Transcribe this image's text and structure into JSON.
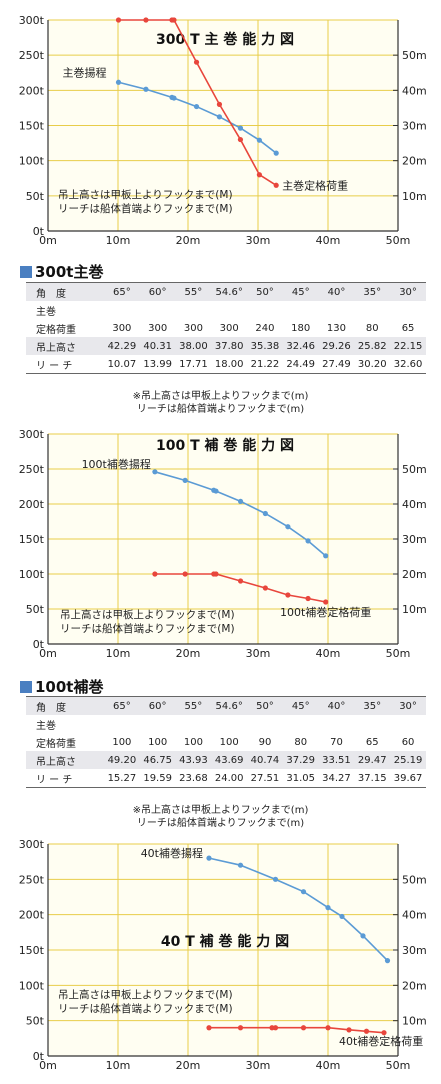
{
  "charts": [
    {
      "chart_data": {
        "type": "line",
        "title": "300 T 主 巻 能 力 図",
        "x_tick_labels": [
          "0m",
          "10m",
          "20m",
          "30m",
          "40m",
          "50m"
        ],
        "xlim": [
          0,
          50
        ],
        "y_left_tick_labels": [
          "0t",
          "50t",
          "100t",
          "150t",
          "200t",
          "250t",
          "300t"
        ],
        "ylim_left": [
          0,
          300
        ],
        "y_right_tick_labels": [
          "10m",
          "20m",
          "30m",
          "40m",
          "50m"
        ],
        "ylim_right": [
          0,
          60
        ],
        "grid": true,
        "series": [
          {
            "name": "主巻揚程",
            "axis": "right",
            "color": "#5b9bd5",
            "x": [
              10.07,
              13.99,
              17.71,
              18.0,
              21.22,
              24.49,
              27.49,
              30.2,
              32.6
            ],
            "y": [
              42.29,
              40.31,
              38.0,
              37.8,
              35.38,
              32.46,
              29.26,
              25.82,
              22.15
            ]
          },
          {
            "name": "主巻定格荷重",
            "axis": "left",
            "color": "#e8463c",
            "x": [
              10.07,
              13.99,
              17.71,
              18.0,
              21.22,
              24.49,
              27.49,
              30.2,
              32.6
            ],
            "y": [
              300,
              300,
              300,
              300,
              240,
              180,
              130,
              80,
              65
            ]
          }
        ],
        "notes": [
          "吊上高さは甲板上よりフックまで(M)",
          "リーチは船体首端よりフックまで(M)"
        ]
      }
    },
    {
      "chart_data": {
        "type": "line",
        "title": "100 T 補 巻 能 力 図",
        "x_tick_labels": [
          "0m",
          "10m",
          "20m",
          "30m",
          "40m",
          "50m"
        ],
        "xlim": [
          0,
          50
        ],
        "y_left_tick_labels": [
          "0t",
          "50t",
          "100t",
          "150t",
          "200t",
          "250t",
          "300t"
        ],
        "ylim_left": [
          0,
          300
        ],
        "y_right_tick_labels": [
          "10m",
          "20m",
          "30m",
          "40m",
          "50m"
        ],
        "ylim_right": [
          0,
          60
        ],
        "grid": true,
        "series": [
          {
            "name": "100t補巻揚程",
            "axis": "right",
            "color": "#5b9bd5",
            "x": [
              15.27,
              19.59,
              23.68,
              24.0,
              27.51,
              31.05,
              34.27,
              37.15,
              39.67
            ],
            "y": [
              49.2,
              46.75,
              43.93,
              43.69,
              40.74,
              37.29,
              33.51,
              29.47,
              25.19
            ]
          },
          {
            "name": "100t補巻定格荷重",
            "axis": "left",
            "color": "#e8463c",
            "x": [
              15.27,
              19.59,
              23.68,
              24.0,
              27.51,
              31.05,
              34.27,
              37.15,
              39.67
            ],
            "y": [
              100,
              100,
              100,
              100,
              90,
              80,
              70,
              65,
              60
            ]
          }
        ],
        "notes": [
          "吊上高さは甲板上よりフックまで(M)",
          "リーチは船体首端よりフックまで(M)"
        ]
      }
    },
    {
      "chart_data": {
        "type": "line",
        "title": "40 T 補 巻 能 力 図",
        "x_tick_labels": [
          "0m",
          "10m",
          "20m",
          "30m",
          "40m",
          "50m"
        ],
        "xlim": [
          0,
          50
        ],
        "y_left_tick_labels": [
          "0t",
          "50t",
          "100t",
          "150t",
          "200t",
          "250t",
          "300t"
        ],
        "ylim_left": [
          0,
          300
        ],
        "y_right_tick_labels": [
          "10m",
          "20m",
          "30m",
          "40m",
          "50m"
        ],
        "ylim_right": [
          0,
          60
        ],
        "grid": true,
        "series": [
          {
            "name": "40t補巻揚程",
            "axis": "right",
            "color": "#5b9bd5",
            "x": [
              23.0,
              27.5,
              32.5,
              36.5,
              40.0,
              42.0,
              45.0,
              48.5
            ],
            "y": [
              56.0,
              54.0,
              50.0,
              46.5,
              42.0,
              39.5,
              34.0,
              27.0
            ]
          },
          {
            "name": "40t補巻定格荷重",
            "axis": "left",
            "color": "#e8463c",
            "x": [
              23.0,
              27.5,
              32.0,
              32.5,
              36.5,
              40.0,
              43.0,
              45.5,
              48.0
            ],
            "y": [
              40,
              40,
              40,
              40,
              40,
              40,
              37,
              35,
              33
            ]
          }
        ],
        "notes": [
          "吊上高さは甲板上よりフックまで(M)",
          "リーチは船体首端よりフックまで(M)"
        ]
      }
    }
  ],
  "tables": [
    {
      "title": "300t主巻",
      "header_label": "角　度",
      "angles": [
        "65°",
        "60°",
        "55°",
        "54.6°",
        "50°",
        "45°",
        "40°",
        "35°",
        "30°"
      ],
      "group_label": "主巻",
      "rows": [
        {
          "label": "定格荷重",
          "values": [
            "300",
            "300",
            "300",
            "300",
            "240",
            "180",
            "130",
            "80",
            "65"
          ]
        },
        {
          "label": "吊上高さ",
          "values": [
            "42.29",
            "40.31",
            "38.00",
            "37.80",
            "35.38",
            "32.46",
            "29.26",
            "25.82",
            "22.15"
          ]
        },
        {
          "label": "リ ー チ",
          "values": [
            "10.07",
            "13.99",
            "17.71",
            "18.00",
            "21.22",
            "24.49",
            "27.49",
            "30.20",
            "32.60"
          ]
        }
      ],
      "notes": [
        "※吊上高さは甲板上よりフックまで(m)",
        "リーチは船体首端よりフックまで(m)"
      ]
    },
    {
      "title": "100t補巻",
      "header_label": "角　度",
      "angles": [
        "65°",
        "60°",
        "55°",
        "54.6°",
        "50°",
        "45°",
        "40°",
        "35°",
        "30°"
      ],
      "group_label": "主巻",
      "rows": [
        {
          "label": "定格荷重",
          "values": [
            "100",
            "100",
            "100",
            "100",
            "90",
            "80",
            "70",
            "65",
            "60"
          ]
        },
        {
          "label": "吊上高さ",
          "values": [
            "49.20",
            "46.75",
            "43.93",
            "43.69",
            "40.74",
            "37.29",
            "33.51",
            "29.47",
            "25.19"
          ]
        },
        {
          "label": "リ ー チ",
          "values": [
            "15.27",
            "19.59",
            "23.68",
            "24.00",
            "27.51",
            "31.05",
            "34.27",
            "37.15",
            "39.67"
          ]
        }
      ],
      "notes": [
        "※吊上高さは甲板上よりフックまで(m)",
        "リーチは船体首端よりフックまで(m)"
      ]
    }
  ]
}
